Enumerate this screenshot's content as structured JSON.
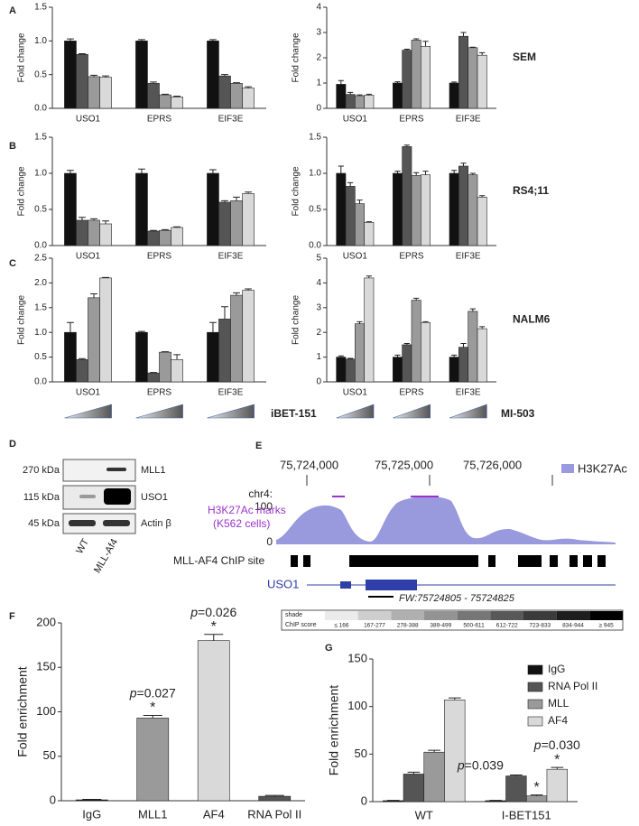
{
  "panel_letters": [
    "A",
    "B",
    "C",
    "D",
    "E",
    "F",
    "G"
  ],
  "chart_data": [
    {
      "type": "bar",
      "ylabel": "Fold change",
      "categories": [
        "USO1",
        "EPRS",
        "EIF3E"
      ],
      "ylim": [
        0,
        1.5
      ],
      "yticks": [
        {
          "value": 0,
          "label": "0.0"
        },
        0.5,
        {
          "value": 1,
          "label": "1.0"
        },
        1.5
      ],
      "series": [
        {
          "color": "#111111",
          "values": [
            1.0,
            1.0,
            1.0
          ],
          "errors": [
            0.03,
            0.02,
            0.02
          ]
        },
        {
          "color": "#555555",
          "values": [
            0.8,
            0.37,
            0.48
          ],
          "errors": [
            0.01,
            0.02,
            0.02
          ]
        },
        {
          "color": "#9a9a9a",
          "values": [
            0.47,
            0.2,
            0.37
          ],
          "errors": [
            0.02,
            0.01,
            0.01
          ]
        },
        {
          "color": "#d9d9d9",
          "values": [
            0.46,
            0.17,
            0.3
          ],
          "errors": [
            0.02,
            0.01,
            0.02
          ]
        }
      ]
    },
    {
      "type": "bar",
      "ylabel": "Fold change",
      "label": "SEM",
      "categories": [
        "USO1",
        "EPRS",
        "EIF3E"
      ],
      "ylim": [
        0,
        4
      ],
      "yticks": [
        0,
        1,
        2,
        3,
        4
      ],
      "series": [
        {
          "color": "#111111",
          "values": [
            0.95,
            1.0,
            1.0
          ],
          "errors": [
            0.15,
            0.05,
            0.04
          ]
        },
        {
          "color": "#555555",
          "values": [
            0.55,
            2.3,
            2.85
          ],
          "errors": [
            0.08,
            0.04,
            0.15
          ]
        },
        {
          "color": "#9a9a9a",
          "values": [
            0.5,
            2.7,
            2.4
          ],
          "errors": [
            0.03,
            0.05,
            0.02
          ]
        },
        {
          "color": "#d9d9d9",
          "values": [
            0.52,
            2.45,
            2.1
          ],
          "errors": [
            0.04,
            0.2,
            0.1
          ]
        }
      ]
    },
    {
      "type": "bar",
      "ylabel": "Fold change",
      "categories": [
        "USO1",
        "EPRS",
        "EIF3E"
      ],
      "ylim": [
        0,
        1.5
      ],
      "yticks": [
        {
          "value": 0,
          "label": "0.0"
        },
        0.5,
        {
          "value": 1,
          "label": "1.0"
        },
        1.5
      ],
      "series": [
        {
          "color": "#111111",
          "values": [
            1.0,
            1.0,
            1.0
          ],
          "errors": [
            0.04,
            0.06,
            0.05
          ]
        },
        {
          "color": "#555555",
          "values": [
            0.35,
            0.2,
            0.6
          ],
          "errors": [
            0.04,
            0.01,
            0.02
          ]
        },
        {
          "color": "#9a9a9a",
          "values": [
            0.35,
            0.21,
            0.62
          ],
          "errors": [
            0.02,
            0.01,
            0.05
          ]
        },
        {
          "color": "#d9d9d9",
          "values": [
            0.3,
            0.25,
            0.72
          ],
          "errors": [
            0.04,
            0.01,
            0.02
          ]
        }
      ]
    },
    {
      "type": "bar",
      "ylabel": "Fold change",
      "label": "RS4;11",
      "categories": [
        "USO1",
        "EPRS",
        "EIF3E"
      ],
      "ylim": [
        0,
        1.5
      ],
      "yticks": [
        {
          "value": 0,
          "label": "0.0"
        },
        0.5,
        {
          "value": 1,
          "label": "1.0"
        },
        1.5
      ],
      "series": [
        {
          "color": "#111111",
          "values": [
            1.0,
            1.0,
            1.0
          ],
          "errors": [
            0.1,
            0.03,
            0.04
          ]
        },
        {
          "color": "#555555",
          "values": [
            0.82,
            1.37,
            1.1
          ],
          "errors": [
            0.05,
            0.02,
            0.04
          ]
        },
        {
          "color": "#9a9a9a",
          "values": [
            0.58,
            0.97,
            0.98
          ],
          "errors": [
            0.05,
            0.04,
            0.02
          ]
        },
        {
          "color": "#d9d9d9",
          "values": [
            0.32,
            0.98,
            0.67
          ],
          "errors": [
            0.01,
            0.05,
            0.02
          ]
        }
      ]
    },
    {
      "type": "bar",
      "ylabel": "Fold change",
      "treatment": "iBET-151",
      "categories": [
        "USO1",
        "EPRS",
        "EIF3E"
      ],
      "ylim": [
        0,
        2.5
      ],
      "yticks": [
        {
          "value": 0,
          "label": "0.0"
        },
        0.5,
        {
          "value": 1,
          "label": "1.0"
        },
        1.5,
        {
          "value": 2,
          "label": "2.0"
        },
        2.5
      ],
      "series": [
        {
          "color": "#111111",
          "values": [
            1.0,
            1.0,
            1.0
          ],
          "errors": [
            0.2,
            0.02,
            0.2
          ]
        },
        {
          "color": "#555555",
          "values": [
            0.45,
            0.18,
            1.27
          ],
          "errors": [
            0.02,
            0.01,
            0.25
          ]
        },
        {
          "color": "#9a9a9a",
          "values": [
            1.7,
            0.6,
            1.75
          ],
          "errors": [
            0.08,
            0.01,
            0.05
          ]
        },
        {
          "color": "#d9d9d9",
          "values": [
            2.1,
            0.45,
            1.85
          ],
          "errors": [
            0.01,
            0.1,
            0.03
          ]
        }
      ]
    },
    {
      "type": "bar",
      "ylabel": "Fold change",
      "label": "NALM6",
      "treatment": "MI-503",
      "categories": [
        "USO1",
        "EPRS",
        "EIF3E"
      ],
      "ylim": [
        0,
        5
      ],
      "yticks": [
        0,
        1,
        2,
        3,
        4,
        5
      ],
      "series": [
        {
          "color": "#111111",
          "values": [
            1.0,
            1.0,
            1.0
          ],
          "errors": [
            0.05,
            0.08,
            0.08
          ]
        },
        {
          "color": "#555555",
          "values": [
            0.92,
            1.5,
            1.4
          ],
          "errors": [
            0.03,
            0.05,
            0.15
          ]
        },
        {
          "color": "#9a9a9a",
          "values": [
            2.35,
            3.3,
            2.85
          ],
          "errors": [
            0.08,
            0.08,
            0.1
          ]
        },
        {
          "color": "#d9d9d9",
          "values": [
            4.2,
            2.4,
            2.15
          ],
          "errors": [
            0.08,
            0.03,
            0.08
          ]
        }
      ]
    },
    {
      "type": "bar",
      "ylabel": "Fold enrichment",
      "categories": [
        "IgG",
        "MLL1",
        "AF4",
        "RNA Pol II"
      ],
      "values": [
        1,
        93,
        180,
        5
      ],
      "errors": [
        0.5,
        3,
        7,
        1
      ],
      "colors": [
        "#111111",
        "#9a9a9a",
        "#d9d9d9",
        "#555555"
      ],
      "annotations": [
        null,
        "p=0.027",
        "p=0.026",
        null
      ],
      "markers": [
        null,
        "*",
        "*",
        null
      ],
      "ylim": [
        0,
        200
      ],
      "yticks": [
        0,
        50,
        100,
        150,
        200
      ]
    },
    {
      "type": "bar",
      "ylabel": "Fold enrichment",
      "categories": [
        "WT",
        "I-BET151"
      ],
      "ylim": [
        0,
        150
      ],
      "yticks": [
        0,
        50,
        100,
        150
      ],
      "legend": "top-right",
      "series": [
        {
          "name": "IgG",
          "color": "#111111",
          "values": [
            1,
            1
          ],
          "errors": [
            0.3,
            0.3
          ]
        },
        {
          "name": "RNA Pol II",
          "color": "#555555",
          "values": [
            29,
            27
          ],
          "errors": [
            2,
            1
          ],
          "annotations": [
            null,
            "p=0.039"
          ],
          "markers": [
            null,
            null
          ]
        },
        {
          "name": "MLL",
          "color": "#9a9a9a",
          "values": [
            52,
            6
          ],
          "errors": [
            2,
            1
          ],
          "annotations": [
            null,
            null
          ],
          "markers": [
            null,
            "*"
          ]
        },
        {
          "name": "AF4",
          "color": "#d9d9d9",
          "values": [
            107,
            34
          ],
          "errors": [
            2,
            2
          ],
          "annotations": [
            null,
            "p=0.030"
          ],
          "markers": [
            null,
            "*"
          ]
        }
      ]
    }
  ],
  "blot": {
    "sizes": [
      "270 kDa",
      "115 kDa",
      "45 kDa"
    ],
    "proteins": [
      "MLL1",
      "USO1",
      "Actin β"
    ],
    "lanes": [
      "WT",
      "MLL-Af4"
    ]
  },
  "browser": {
    "coordinates": [
      "75,724,000",
      "75,725,000",
      "75,726,000"
    ],
    "chromosome": "chr4:",
    "track_max": 100,
    "track_min": 0,
    "legend": "H3K27Ac",
    "track_label": [
      "H3K27Ac marks",
      "(K562 cells)"
    ],
    "chip_label": "MLL-AF4 ChIP site",
    "gene": "USO1",
    "primer": "FW:75724805 - 75724825",
    "shade_label": "shade",
    "score_label": "ChIP score",
    "score_bins": [
      "≤ 166",
      "167-277",
      "278-388",
      "389-499",
      "500-611",
      "612-722",
      "723-833",
      "834-944",
      "≥ 945"
    ]
  }
}
